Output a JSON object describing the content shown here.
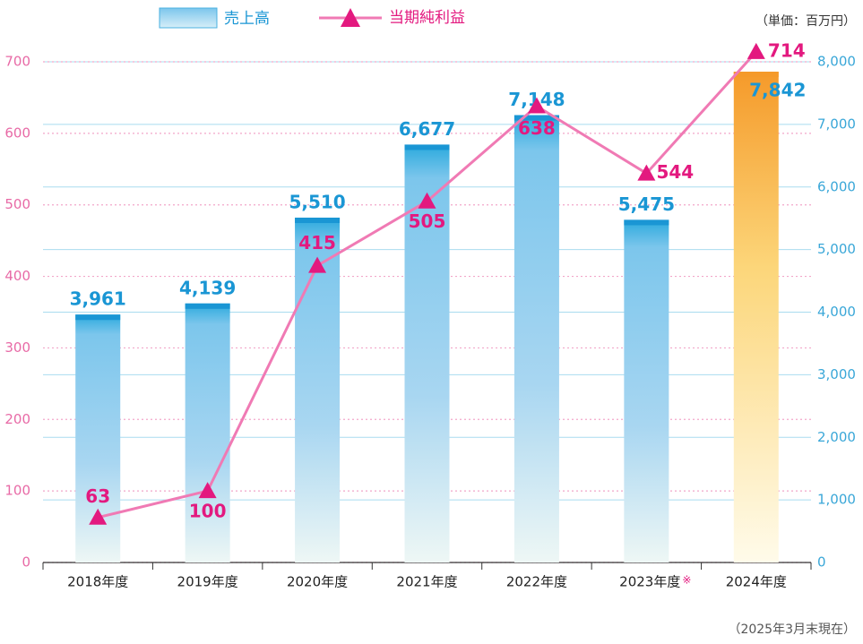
{
  "chart_data": {
    "type": "bar-line",
    "legend": [
      "売上高",
      "当期純利益"
    ],
    "unit_note": "（単価：百万円）",
    "footnote": "（2025年3月末現在）",
    "categories": [
      "2018年度",
      "2019年度",
      "2020年度",
      "2021年度",
      "2022年度",
      "2023年度",
      "2024年度"
    ],
    "annotations": [
      {
        "category": "2023年度",
        "text": "※"
      }
    ],
    "series": [
      {
        "name": "売上高",
        "color": "#1a96d4",
        "highlight_color": "#f59a2a",
        "axis": "y2",
        "values": [
          3961,
          4139,
          5510,
          6677,
          7148,
          5475,
          7842
        ],
        "value_labels": [
          "3,961",
          "4,139",
          "5,510",
          "6,677",
          "7,148",
          "5,475",
          "7,842"
        ]
      },
      {
        "name": "当期純利益",
        "color": "#f07ab4",
        "marker_color": "#e3197f",
        "axis": "y",
        "values": [
          63,
          100,
          415,
          505,
          638,
          544,
          714
        ]
      }
    ],
    "ylim": [
      0,
      700
    ],
    "yticks": [
      0,
      100,
      200,
      300,
      400,
      500,
      600,
      700
    ],
    "y2lim": [
      0,
      8000
    ],
    "y2ticks": [
      0,
      {
        "value": 1000,
        "label": "1,000"
      },
      {
        "value": 2000,
        "label": "2,000"
      },
      {
        "value": 3000,
        "label": "3,000"
      },
      {
        "value": 4000,
        "label": "4,000"
      },
      {
        "value": 5000,
        "label": "5,000"
      },
      {
        "value": 6000,
        "label": "6,000"
      },
      {
        "value": 7000,
        "label": "7,000"
      },
      {
        "value": 8000,
        "label": "8,000"
      }
    ]
  }
}
